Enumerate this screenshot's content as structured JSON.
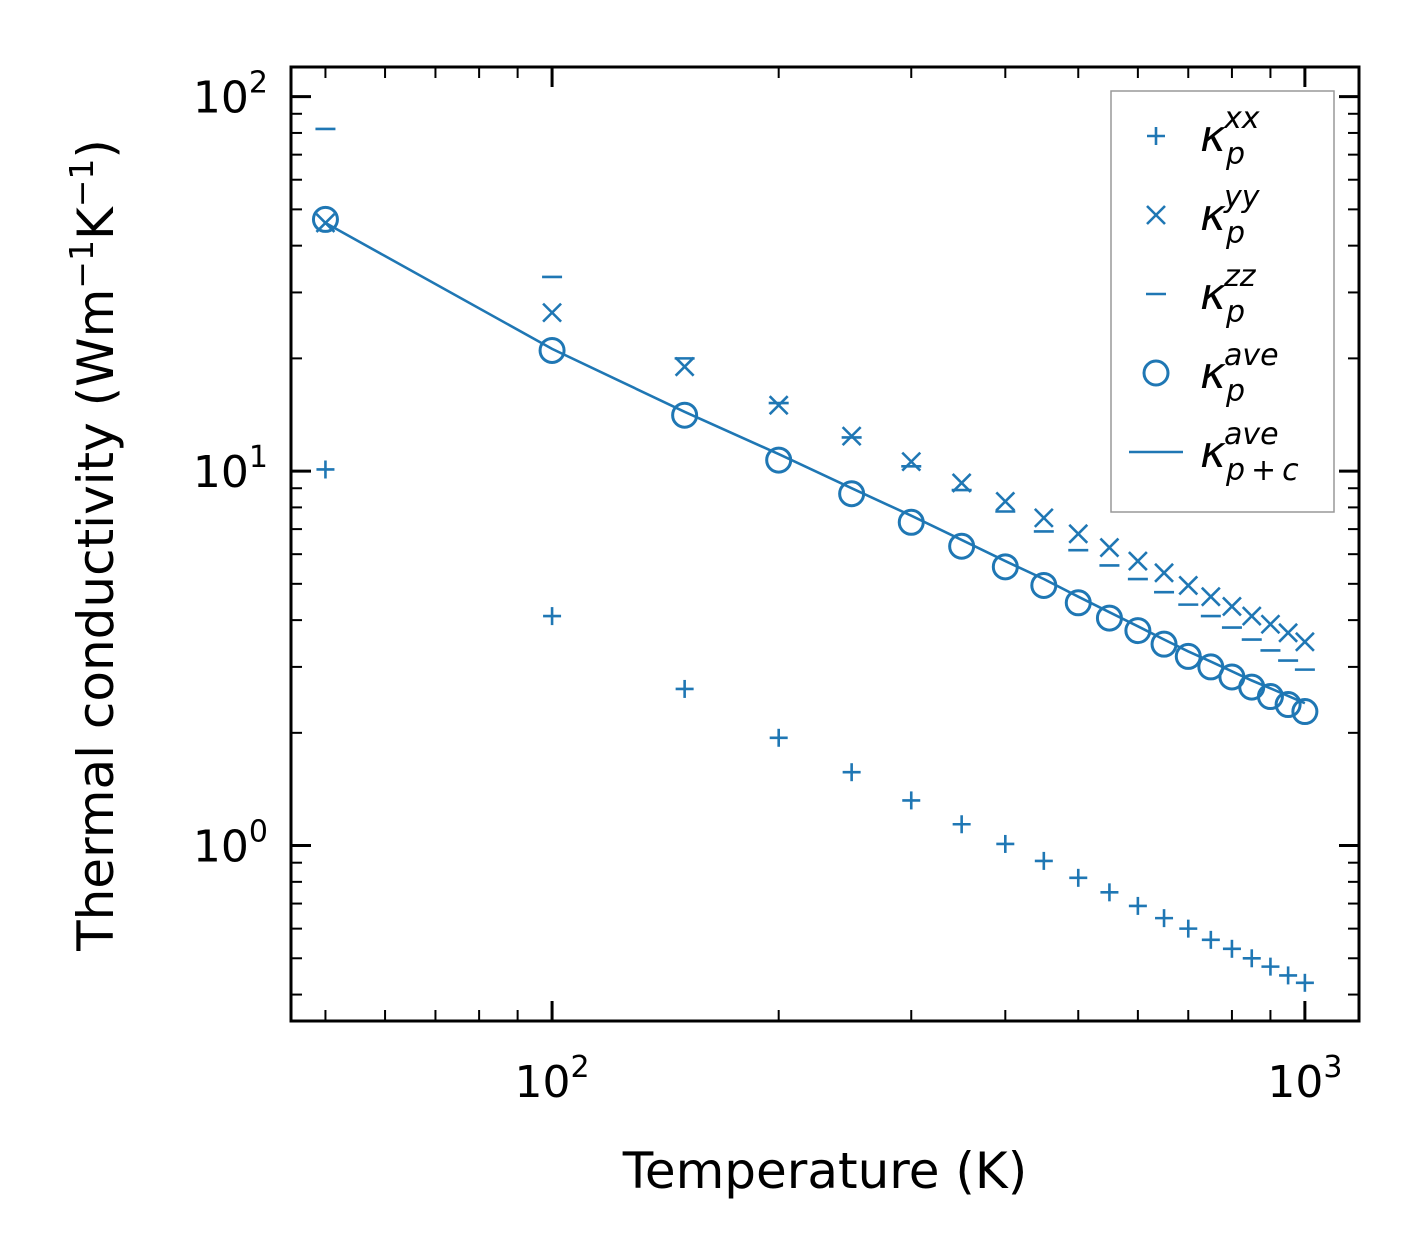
{
  "chart_data": {
    "type": "scatter",
    "title": "",
    "xscale": "log",
    "yscale": "log",
    "xlim": [
      45,
      1180
    ],
    "ylim": [
      0.34,
      120
    ],
    "xlabel": "Temperature (K)",
    "ylabel": {
      "base": "Thermal conductivity (Wm",
      "exp1": "−1",
      "mid": "K",
      "exp2": "−1",
      "end": ")"
    },
    "x_ticks": [
      {
        "value": 100,
        "base": "10",
        "exp": "2"
      },
      {
        "value": 1000,
        "base": "10",
        "exp": "3"
      }
    ],
    "y_ticks": [
      {
        "value": 1,
        "base": "10",
        "exp": "0"
      },
      {
        "value": 10,
        "base": "10",
        "exp": "1"
      },
      {
        "value": 100,
        "base": "10",
        "exp": "2"
      }
    ],
    "tick_direction": "in",
    "ticks_on_all_sides": true,
    "color": "#1f77b4",
    "x": [
      50,
      100,
      150,
      200,
      250,
      300,
      350,
      400,
      450,
      500,
      550,
      600,
      650,
      700,
      750,
      800,
      850,
      900,
      950,
      1000
    ],
    "series": [
      {
        "name": "kappa_p_xx",
        "symbol": "κ",
        "sub": "p",
        "sup": "xx",
        "marker": "plus",
        "values": [
          10.1,
          4.1,
          2.62,
          1.94,
          1.57,
          1.32,
          1.14,
          1.01,
          0.91,
          0.82,
          0.75,
          0.69,
          0.64,
          0.6,
          0.56,
          0.53,
          0.5,
          0.475,
          0.45,
          0.43
        ]
      },
      {
        "name": "kappa_p_yy",
        "symbol": "κ",
        "sub": "p",
        "sup": "yy",
        "marker": "x",
        "values": [
          46,
          26.5,
          19,
          15,
          12.4,
          10.6,
          9.3,
          8.3,
          7.5,
          6.8,
          6.25,
          5.75,
          5.35,
          4.95,
          4.62,
          4.35,
          4.1,
          3.9,
          3.7,
          3.5
        ]
      },
      {
        "name": "kappa_p_zz",
        "symbol": "κ",
        "sub": "p",
        "sup": "zz",
        "marker": "hline",
        "values": [
          82,
          33,
          20,
          15.2,
          12.3,
          10.3,
          8.9,
          7.8,
          6.9,
          6.15,
          5.6,
          5.15,
          4.75,
          4.4,
          4.1,
          3.82,
          3.55,
          3.32,
          3.12,
          2.95
        ]
      },
      {
        "name": "kappa_p_ave",
        "symbol": "κ",
        "sub": "p",
        "sup": "ave",
        "marker": "circle",
        "values": [
          47,
          21,
          14.1,
          10.7,
          8.7,
          7.3,
          6.3,
          5.55,
          4.95,
          4.45,
          4.05,
          3.75,
          3.45,
          3.2,
          3.0,
          2.82,
          2.65,
          2.5,
          2.38,
          2.28
        ]
      },
      {
        "name": "kappa_pc_ave",
        "symbol": "κ",
        "sub": "p + c",
        "sup": "ave",
        "marker": "line",
        "values": [
          46,
          21.2,
          14.4,
          11.1,
          9.0,
          7.6,
          6.55,
          5.75,
          5.15,
          4.62,
          4.2,
          3.85,
          3.55,
          3.3,
          3.1,
          2.92,
          2.76,
          2.63,
          2.51,
          2.4
        ]
      }
    ],
    "legend": {
      "placement": "top-right"
    }
  }
}
